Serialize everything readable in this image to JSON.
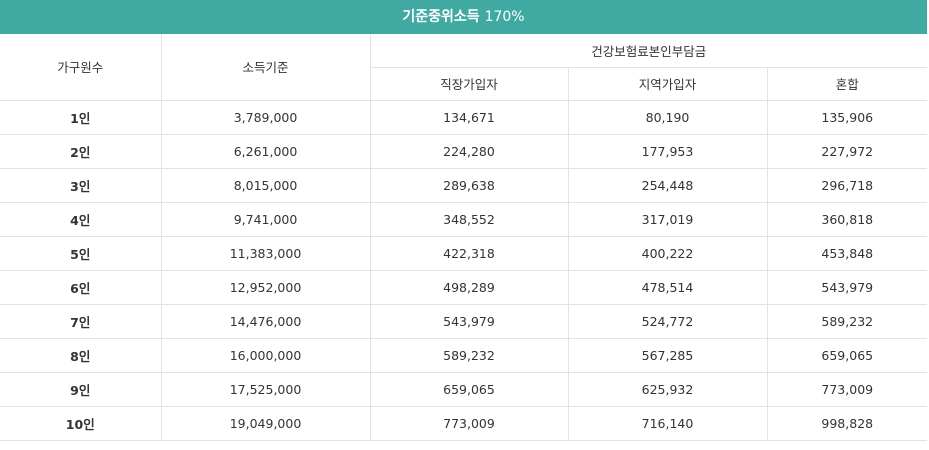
{
  "title": {
    "main": "기준중위소득",
    "percent": "170%"
  },
  "headers": {
    "household": "가구원수",
    "income": "소득기준",
    "group": "건강보험료본인부담금",
    "employee": "직장가입자",
    "regional": "지역가입자",
    "mixed": "혼합"
  },
  "rows": [
    {
      "household": "1인",
      "income": "3,789,000",
      "employee": "134,671",
      "regional": "80,190",
      "mixed": "135,906"
    },
    {
      "household": "2인",
      "income": "6,261,000",
      "employee": "224,280",
      "regional": "177,953",
      "mixed": "227,972"
    },
    {
      "household": "3인",
      "income": "8,015,000",
      "employee": "289,638",
      "regional": "254,448",
      "mixed": "296,718"
    },
    {
      "household": "4인",
      "income": "9,741,000",
      "employee": "348,552",
      "regional": "317,019",
      "mixed": "360,818"
    },
    {
      "household": "5인",
      "income": "11,383,000",
      "employee": "422,318",
      "regional": "400,222",
      "mixed": "453,848"
    },
    {
      "household": "6인",
      "income": "12,952,000",
      "employee": "498,289",
      "regional": "478,514",
      "mixed": "543,979"
    },
    {
      "household": "7인",
      "income": "14,476,000",
      "employee": "543,979",
      "regional": "524,772",
      "mixed": "589,232"
    },
    {
      "household": "8인",
      "income": "16,000,000",
      "employee": "589,232",
      "regional": "567,285",
      "mixed": "659,065"
    },
    {
      "household": "9인",
      "income": "17,525,000",
      "employee": "659,065",
      "regional": "625,932",
      "mixed": "773,009"
    },
    {
      "household": "10인",
      "income": "19,049,000",
      "employee": "773,009",
      "regional": "716,140",
      "mixed": "998,828"
    }
  ]
}
